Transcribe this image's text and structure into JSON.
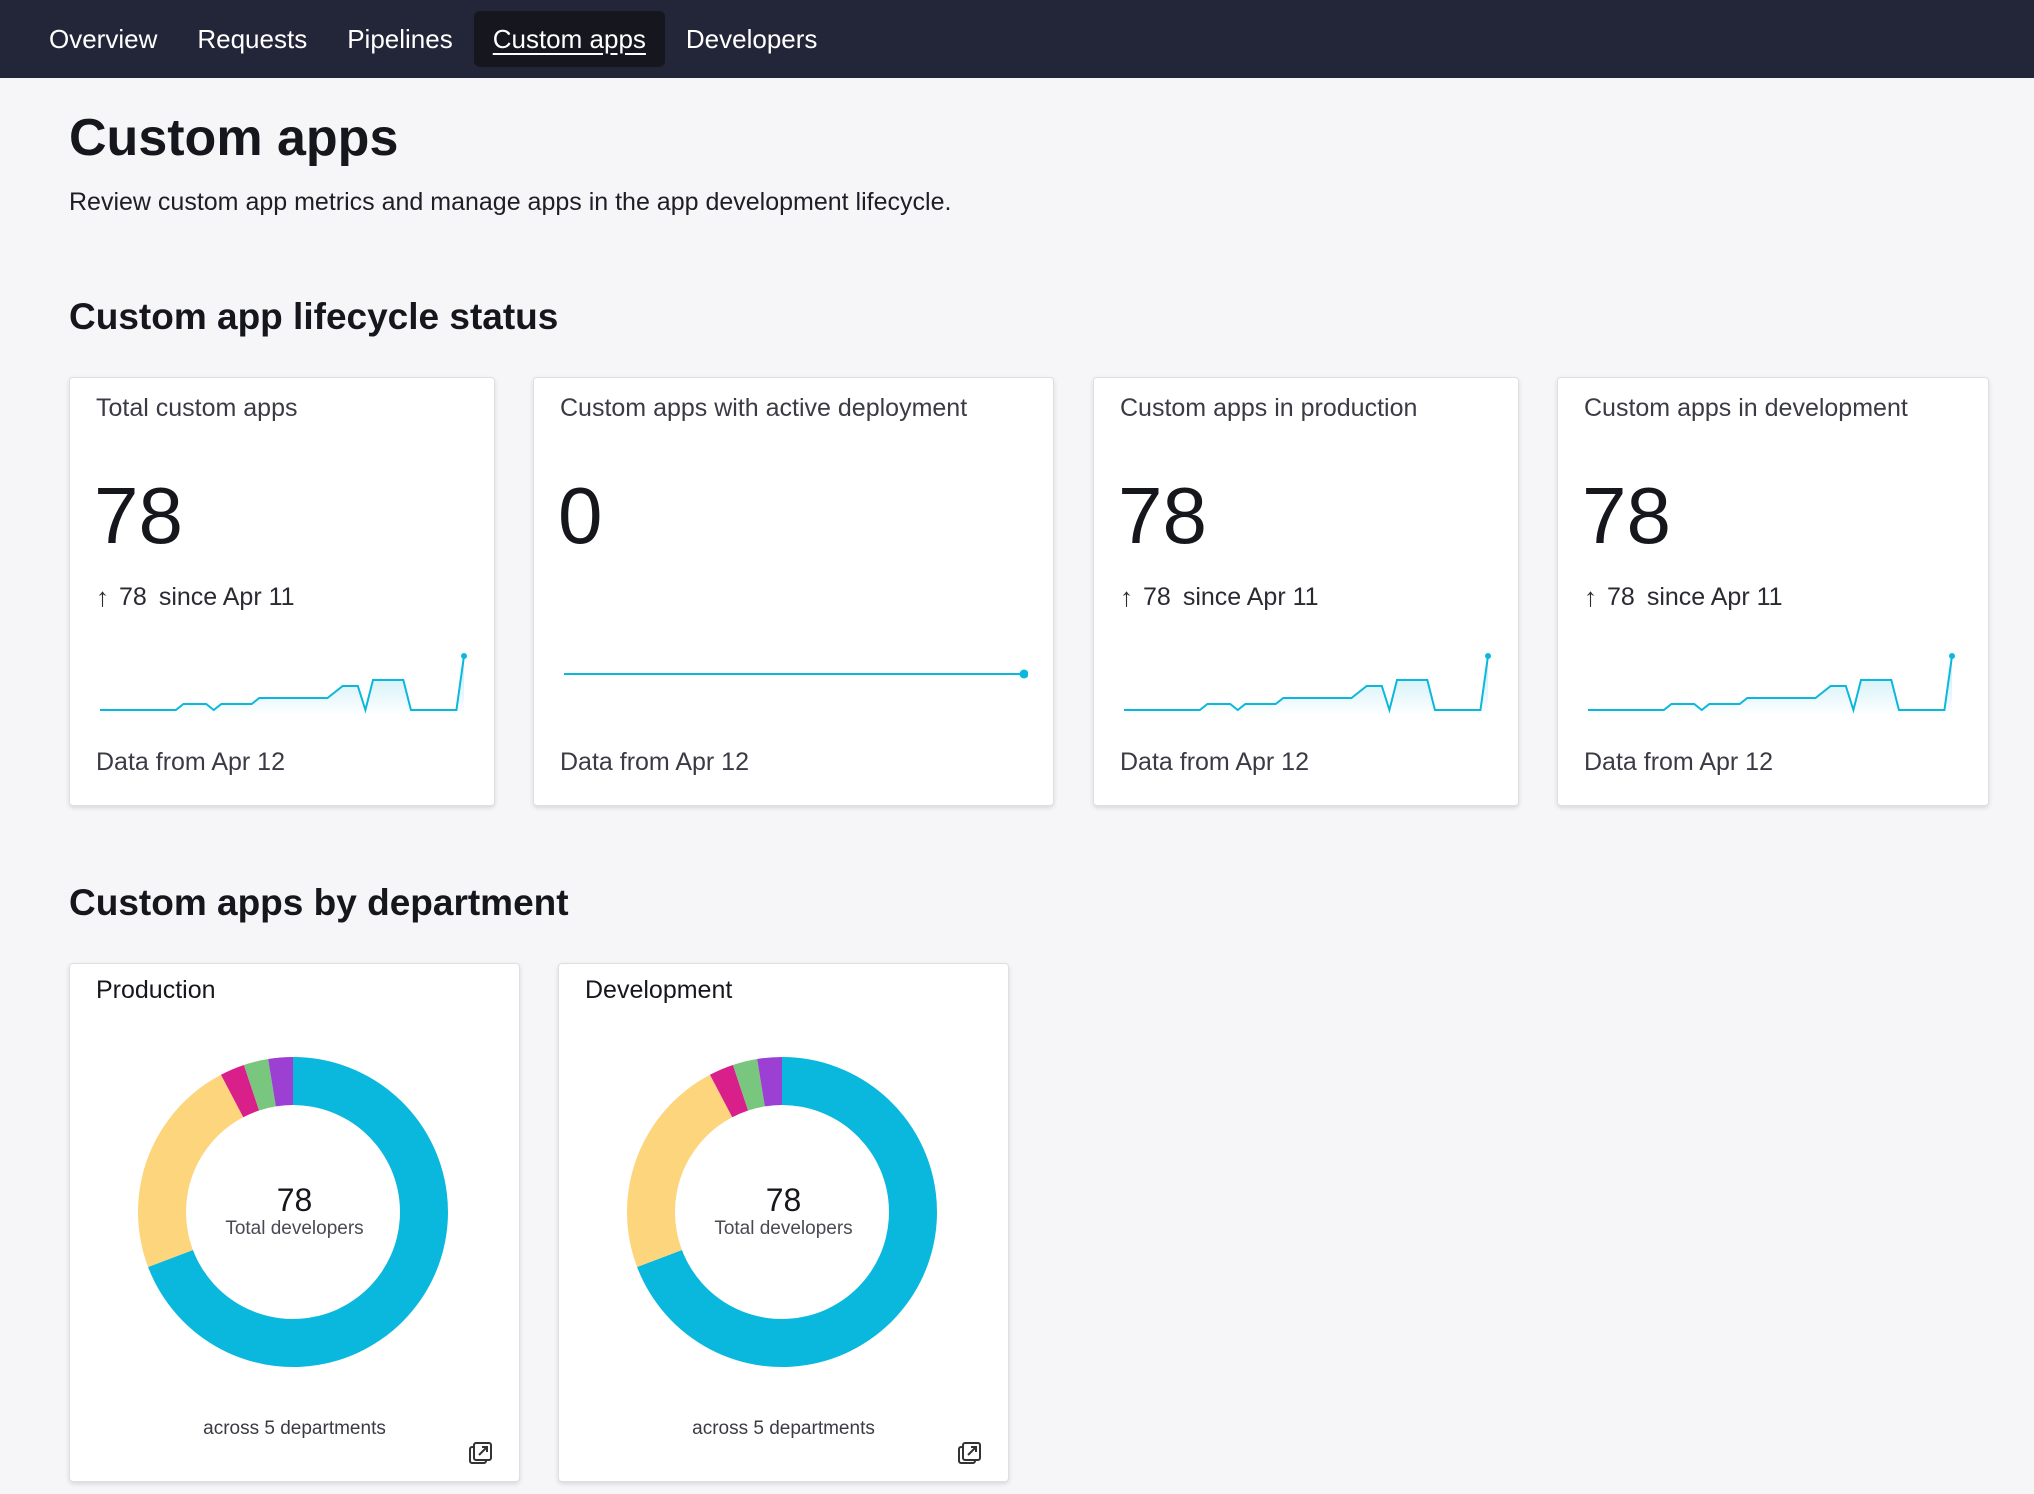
{
  "nav": {
    "tabs": [
      {
        "label": "Overview"
      },
      {
        "label": "Requests"
      },
      {
        "label": "Pipelines"
      },
      {
        "label": "Custom apps"
      },
      {
        "label": "Developers"
      }
    ],
    "active": "Custom apps"
  },
  "header": {
    "title": "Custom apps",
    "description": "Review custom app metrics and manage apps in the app development lifecycle."
  },
  "lifecycle": {
    "section_title": "Custom app lifecycle status",
    "cards": [
      {
        "title": "Total custom apps",
        "value": "78",
        "delta_arrow": "↑",
        "delta_value": "78",
        "delta_label": "since Apr 11",
        "footer": "Data from Apr 12"
      },
      {
        "title": "Custom apps with active deployment",
        "value": "0",
        "footer": "Data from Apr 12"
      },
      {
        "title": "Custom apps in production",
        "value": "78",
        "delta_arrow": "↑",
        "delta_value": "78",
        "delta_label": "since Apr 11",
        "footer": "Data from Apr 12"
      },
      {
        "title": "Custom apps in development",
        "value": "78",
        "delta_arrow": "↑",
        "delta_value": "78",
        "delta_label": "since Apr 11",
        "footer": "Data from Apr 12"
      }
    ]
  },
  "departments": {
    "section_title": "Custom apps by department",
    "cards": [
      {
        "title": "Production",
        "center_value": "78",
        "center_label": "Total developers",
        "footer_prefix": "across",
        "footer_count": "5",
        "footer_suffix": "departments"
      },
      {
        "title": "Development",
        "center_value": "78",
        "center_label": "Total developers",
        "footer_prefix": "across",
        "footer_count": "5",
        "footer_suffix": "departments"
      }
    ]
  },
  "colors": {
    "nav_bg": "#232639",
    "accent": "#0bb8dd",
    "slice_yellow": "#fdd57d",
    "slice_magenta": "#d91f8a",
    "slice_green": "#79c67e",
    "slice_purple": "#9c3fd3"
  },
  "chart_data": [
    {
      "type": "line",
      "name": "total-sparkline",
      "values": [
        1,
        1,
        1,
        1,
        1,
        1,
        1,
        1,
        1,
        1,
        1,
        2,
        2,
        2,
        2,
        1,
        2,
        2,
        2,
        2,
        2,
        3,
        3,
        3,
        3,
        3,
        3,
        3,
        3,
        3,
        3,
        4,
        5,
        5,
        5,
        1,
        6,
        6,
        6,
        6,
        6,
        1,
        1,
        1,
        1,
        1,
        1,
        1,
        10
      ]
    },
    {
      "type": "line",
      "name": "active-deployment-sparkline",
      "values": [
        0,
        0
      ]
    },
    {
      "type": "line",
      "name": "production-sparkline",
      "values": [
        1,
        1,
        1,
        1,
        1,
        1,
        1,
        1,
        1,
        1,
        1,
        2,
        2,
        2,
        2,
        1,
        2,
        2,
        2,
        2,
        2,
        3,
        3,
        3,
        3,
        3,
        3,
        3,
        3,
        3,
        3,
        4,
        5,
        5,
        5,
        1,
        6,
        6,
        6,
        6,
        6,
        1,
        1,
        1,
        1,
        1,
        1,
        1,
        10
      ]
    },
    {
      "type": "line",
      "name": "development-sparkline",
      "values": [
        1,
        1,
        1,
        1,
        1,
        1,
        1,
        1,
        1,
        1,
        1,
        2,
        2,
        2,
        2,
        1,
        2,
        2,
        2,
        2,
        2,
        3,
        3,
        3,
        3,
        3,
        3,
        3,
        3,
        3,
        3,
        4,
        5,
        5,
        5,
        1,
        6,
        6,
        6,
        6,
        6,
        1,
        1,
        1,
        1,
        1,
        1,
        1,
        10
      ]
    },
    {
      "type": "pie",
      "name": "production-donut",
      "slices": [
        {
          "value": 54,
          "color": "#0bb8dd"
        },
        {
          "value": 18,
          "color": "#fdd57d"
        },
        {
          "value": 2,
          "color": "#d91f8a"
        },
        {
          "value": 2,
          "color": "#79c67e"
        },
        {
          "value": 2,
          "color": "#9c3fd3"
        }
      ]
    },
    {
      "type": "pie",
      "name": "development-donut",
      "slices": [
        {
          "value": 54,
          "color": "#0bb8dd"
        },
        {
          "value": 18,
          "color": "#fdd57d"
        },
        {
          "value": 2,
          "color": "#d91f8a"
        },
        {
          "value": 2,
          "color": "#79c67e"
        },
        {
          "value": 2,
          "color": "#9c3fd3"
        }
      ]
    }
  ]
}
